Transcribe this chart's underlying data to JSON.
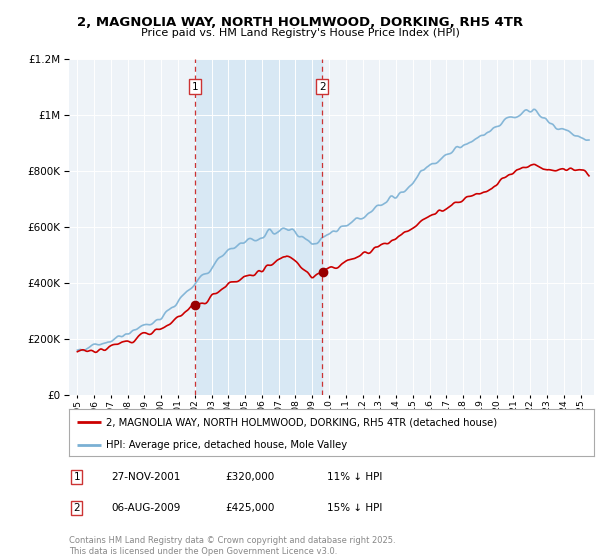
{
  "title": "2, MAGNOLIA WAY, NORTH HOLMWOOD, DORKING, RH5 4TR",
  "subtitle": "Price paid vs. HM Land Registry's House Price Index (HPI)",
  "hpi_color": "#7ab0d4",
  "property_color": "#cc0000",
  "background_color": "#ffffff",
  "plot_bg_color": "#eef3f8",
  "shade_color": "#d8e8f4",
  "sale1_x": 2002.0,
  "sale2_x": 2009.6,
  "sale1_price": 320000,
  "sale2_price": 425000,
  "legend_property": "2, MAGNOLIA WAY, NORTH HOLMWOOD, DORKING, RH5 4TR (detached house)",
  "legend_hpi": "HPI: Average price, detached house, Mole Valley",
  "copyright": "Contains HM Land Registry data © Crown copyright and database right 2025.\nThis data is licensed under the Open Government Licence v3.0.",
  "ylim": [
    0,
    1200000
  ],
  "xmin": 1994.5,
  "xmax": 2025.8
}
